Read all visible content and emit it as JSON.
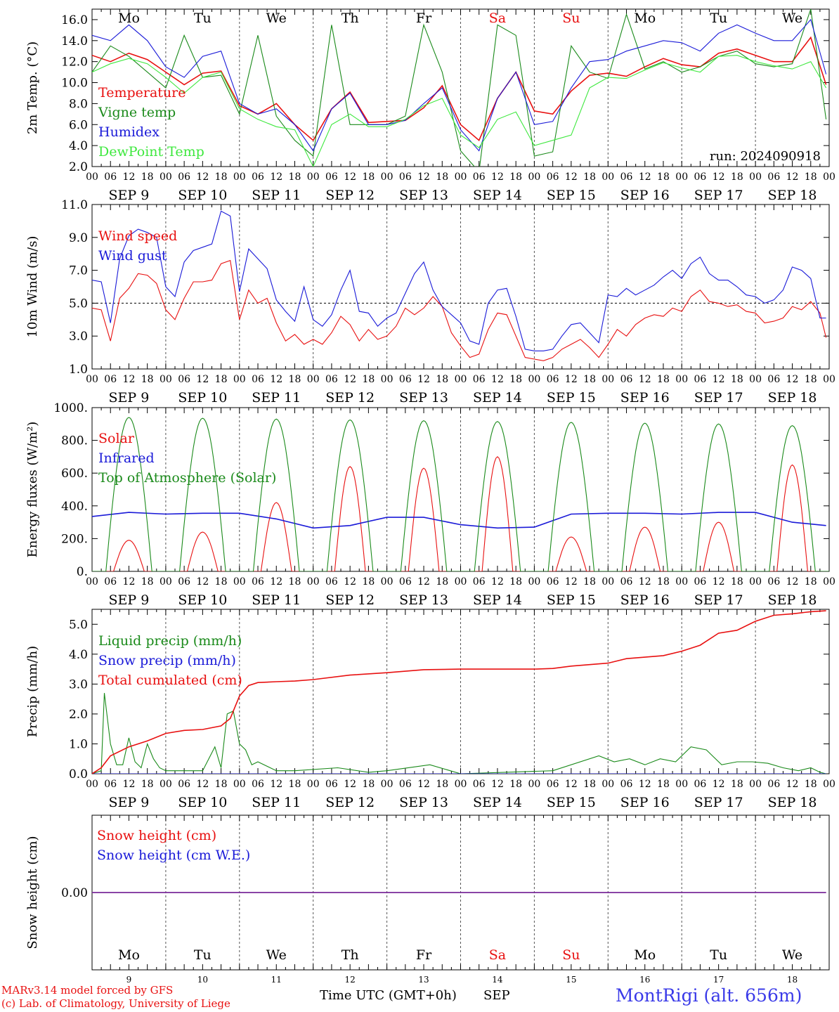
{
  "chart_data": [
    {
      "type": "line",
      "ylabel": "2m Temp. (°C)",
      "ylim": [
        2.0,
        17.0
      ],
      "yticks": [
        "2.0",
        "4.0",
        "6.0",
        "8.0",
        "10.0",
        "12.0",
        "14.0",
        "16.0"
      ],
      "annotation": "run: 2024090918",
      "days_top": [
        "Mo",
        "Tu",
        "We",
        "Th",
        "Fr",
        "Sa",
        "Su",
        "Mo",
        "Tu",
        "We"
      ],
      "series": [
        {
          "name": "Temperature",
          "color": "#e81010",
          "x": [
            0,
            6,
            12,
            18,
            24,
            30,
            36,
            42,
            48,
            54,
            60,
            66,
            72,
            78,
            84,
            90,
            96,
            102,
            108,
            114,
            120,
            126,
            132,
            138,
            144,
            150,
            156,
            162,
            168,
            174,
            180,
            186,
            192,
            198,
            204,
            210,
            216,
            222,
            228,
            234,
            239
          ],
          "values": [
            12.6,
            12.0,
            12.8,
            12.2,
            11.0,
            9.8,
            10.9,
            11.1,
            7.8,
            7.0,
            8.0,
            6.0,
            4.5,
            7.5,
            9.1,
            6.2,
            6.3,
            6.4,
            7.6,
            9.7,
            6.0,
            4.5,
            8.5,
            11.0,
            7.3,
            7.0,
            9.2,
            10.7,
            10.9,
            10.6,
            11.5,
            12.3,
            11.7,
            11.5,
            12.8,
            13.2,
            12.6,
            12.0,
            12.0,
            14.3,
            9.8
          ]
        },
        {
          "name": "Vigne temp",
          "color": "#1a8a1a",
          "x": [
            0,
            6,
            12,
            18,
            24,
            30,
            36,
            42,
            48,
            54,
            60,
            66,
            72,
            78,
            84,
            90,
            96,
            102,
            108,
            114,
            120,
            126,
            132,
            138,
            144,
            150,
            156,
            162,
            168,
            174,
            180,
            186,
            192,
            198,
            204,
            210,
            216,
            222,
            228,
            234,
            239
          ],
          "values": [
            11.0,
            13.5,
            12.5,
            11.0,
            9.5,
            14.5,
            10.5,
            10.7,
            7.0,
            14.5,
            6.8,
            4.5,
            3.0,
            15.5,
            6.0,
            6.0,
            6.0,
            6.8,
            15.5,
            11.0,
            3.5,
            1.5,
            15.5,
            14.5,
            3.0,
            3.4,
            13.5,
            11.0,
            10.4,
            16.5,
            11.3,
            12.0,
            11.0,
            11.5,
            12.5,
            13.0,
            11.8,
            11.5,
            11.8,
            17.0,
            6.5
          ]
        },
        {
          "name": "Humidex",
          "color": "#1a1ad8",
          "x": [
            0,
            6,
            12,
            18,
            24,
            30,
            36,
            42,
            48,
            54,
            60,
            66,
            72,
            78,
            84,
            90,
            96,
            102,
            108,
            114,
            120,
            126,
            132,
            138,
            144,
            150,
            156,
            162,
            168,
            174,
            180,
            186,
            192,
            198,
            204,
            210,
            216,
            222,
            228,
            234,
            239
          ],
          "values": [
            14.5,
            14.0,
            15.5,
            14.0,
            11.5,
            10.5,
            12.5,
            13.0,
            8.0,
            7.0,
            7.5,
            6.0,
            3.5,
            7.5,
            9.0,
            6.0,
            6.0,
            6.4,
            8.0,
            9.5,
            5.5,
            3.5,
            8.5,
            11.0,
            6.0,
            6.3,
            9.5,
            12.0,
            12.2,
            13.0,
            13.5,
            14.0,
            13.8,
            13.0,
            14.7,
            15.5,
            14.7,
            14.0,
            14.0,
            16.0,
            10.8
          ]
        },
        {
          "name": "DewPoint Temp",
          "color": "#3ee83e",
          "x": [
            0,
            6,
            12,
            18,
            24,
            30,
            36,
            42,
            48,
            54,
            60,
            66,
            72,
            78,
            84,
            90,
            96,
            102,
            108,
            114,
            120,
            126,
            132,
            138,
            144,
            150,
            156,
            162,
            168,
            174,
            180,
            186,
            192,
            198,
            204,
            210,
            216,
            222,
            228,
            234,
            239
          ],
          "values": [
            11.0,
            11.8,
            12.3,
            11.8,
            10.5,
            9.0,
            10.5,
            11.0,
            7.5,
            6.5,
            5.8,
            5.5,
            2.0,
            6.0,
            7.0,
            5.8,
            5.8,
            6.5,
            7.8,
            8.5,
            5.0,
            3.8,
            6.5,
            7.2,
            4.0,
            4.5,
            5.0,
            9.5,
            10.5,
            10.4,
            11.2,
            11.9,
            11.4,
            11.0,
            12.5,
            12.6,
            12.0,
            11.6,
            11.3,
            12.0,
            9.5
          ]
        }
      ]
    },
    {
      "type": "line",
      "ylabel": "10m Wind (m/s)",
      "ylim": [
        1.0,
        11.0
      ],
      "yticks": [
        "1.0",
        "3.0",
        "5.0",
        "7.0",
        "9.0",
        "11.0"
      ],
      "ref_line": 5.0,
      "series": [
        {
          "name": "Wind speed",
          "color": "#e81010",
          "x": [
            0,
            3,
            6,
            9,
            12,
            15,
            18,
            21,
            24,
            27,
            30,
            33,
            36,
            39,
            42,
            45,
            48,
            51,
            54,
            57,
            60,
            63,
            66,
            69,
            72,
            75,
            78,
            81,
            84,
            87,
            90,
            93,
            96,
            99,
            102,
            105,
            108,
            111,
            114,
            117,
            120,
            123,
            126,
            129,
            132,
            135,
            138,
            141,
            144,
            147,
            150,
            153,
            156,
            159,
            162,
            165,
            168,
            171,
            174,
            177,
            180,
            183,
            186,
            189,
            192,
            195,
            198,
            201,
            204,
            207,
            210,
            213,
            216,
            219,
            222,
            225,
            228,
            231,
            234,
            237,
            239
          ],
          "values": [
            4.7,
            4.6,
            2.7,
            5.3,
            5.9,
            6.8,
            6.7,
            6.2,
            4.6,
            4.0,
            5.3,
            6.3,
            6.3,
            6.4,
            7.4,
            7.6,
            4.0,
            5.8,
            5.0,
            5.3,
            3.8,
            2.7,
            3.1,
            2.5,
            2.8,
            2.5,
            3.2,
            4.2,
            3.7,
            2.7,
            3.4,
            2.8,
            3.0,
            3.6,
            4.7,
            4.3,
            4.7,
            5.4,
            4.8,
            3.2,
            2.4,
            1.7,
            1.9,
            3.4,
            4.4,
            4.3,
            3.0,
            1.7,
            1.6,
            1.5,
            1.7,
            2.2,
            2.5,
            2.8,
            2.3,
            1.7,
            2.5,
            3.4,
            3.0,
            3.7,
            4.1,
            4.3,
            4.2,
            4.7,
            4.5,
            5.4,
            5.8,
            5.1,
            5.0,
            4.8,
            4.9,
            4.5,
            4.4,
            3.8,
            3.9,
            4.1,
            4.8,
            4.6,
            5.1,
            4.4,
            2.9
          ]
        },
        {
          "name": "Wind gust",
          "color": "#1a1ad8",
          "x": [
            0,
            3,
            6,
            9,
            12,
            15,
            18,
            21,
            24,
            27,
            30,
            33,
            36,
            39,
            42,
            45,
            48,
            51,
            54,
            57,
            60,
            63,
            66,
            69,
            72,
            75,
            78,
            81,
            84,
            87,
            90,
            93,
            96,
            99,
            102,
            105,
            108,
            111,
            114,
            117,
            120,
            123,
            126,
            129,
            132,
            135,
            138,
            141,
            144,
            147,
            150,
            153,
            156,
            159,
            162,
            165,
            168,
            171,
            174,
            177,
            180,
            183,
            186,
            189,
            192,
            195,
            198,
            201,
            204,
            207,
            210,
            213,
            216,
            219,
            222,
            225,
            228,
            231,
            234,
            237,
            239
          ],
          "values": [
            6.4,
            6.3,
            3.8,
            7.7,
            9.1,
            9.5,
            9.3,
            9.0,
            6.0,
            5.4,
            7.5,
            8.2,
            8.4,
            8.6,
            10.6,
            10.3,
            5.7,
            8.3,
            7.7,
            7.1,
            5.2,
            4.5,
            3.9,
            6.0,
            4.0,
            3.6,
            4.3,
            5.8,
            7.0,
            4.5,
            4.4,
            3.6,
            4.1,
            4.4,
            5.6,
            6.8,
            7.5,
            5.8,
            4.8,
            4.3,
            3.8,
            2.7,
            2.5,
            5.0,
            5.8,
            5.9,
            4.2,
            2.2,
            2.1,
            2.1,
            2.2,
            3.0,
            3.7,
            3.8,
            3.2,
            2.6,
            5.5,
            5.4,
            5.9,
            5.5,
            5.8,
            6.1,
            6.6,
            7.0,
            6.5,
            7.4,
            7.8,
            6.8,
            6.4,
            6.4,
            6.0,
            5.5,
            5.4,
            5.0,
            5.2,
            5.8,
            7.2,
            7.0,
            6.5,
            4.1,
            4.1
          ]
        }
      ]
    },
    {
      "type": "line",
      "ylabel": "Energy fluxes (W/m²)",
      "ylim": [
        0,
        1000
      ],
      "yticks": [
        "0.",
        "200.",
        "400.",
        "600.",
        "800.",
        "1000."
      ],
      "series": [
        {
          "name": "Solar",
          "color": "#e81010",
          "peaks": [
            190,
            240,
            420,
            640,
            630,
            700,
            210,
            270,
            300,
            650
          ]
        },
        {
          "name": "Infrared",
          "color": "#1a1ad8",
          "x": [
            0,
            12,
            24,
            36,
            48,
            60,
            72,
            84,
            96,
            108,
            120,
            132,
            144,
            156,
            168,
            180,
            192,
            204,
            216,
            228,
            239
          ],
          "values": [
            335,
            360,
            350,
            355,
            355,
            320,
            265,
            280,
            330,
            330,
            285,
            265,
            270,
            350,
            355,
            355,
            350,
            360,
            360,
            300,
            280
          ]
        },
        {
          "name": "Top of Atmosphere (Solar)",
          "color": "#1a8a1a",
          "peaks": [
            940,
            935,
            930,
            925,
            920,
            915,
            910,
            905,
            900,
            890
          ]
        }
      ]
    },
    {
      "type": "line",
      "ylabel": "Precip (mm/h)",
      "ylim": [
        0,
        5.5
      ],
      "yticks": [
        "0.0",
        "1.0",
        "2.0",
        "3.0",
        "4.0",
        "5.0"
      ],
      "series": [
        {
          "name": "Liquid precip (mm/h)",
          "color": "#1a8a1a",
          "x": [
            0,
            3,
            4,
            6,
            8,
            10,
            12,
            14,
            16,
            18,
            20,
            22,
            24,
            30,
            36,
            40,
            42,
            44,
            46,
            48,
            50,
            52,
            54,
            60,
            66,
            80,
            90,
            96,
            110,
            120,
            150,
            165,
            170,
            175,
            180,
            185,
            190,
            195,
            200,
            205,
            210,
            215,
            220,
            225,
            230,
            234,
            237,
            239
          ],
          "values": [
            0,
            0.1,
            2.7,
            1.0,
            0.3,
            0.3,
            1.2,
            0.4,
            0.2,
            1.0,
            0.5,
            0.2,
            0.1,
            0.1,
            0.1,
            0.9,
            0.2,
            2.0,
            2.1,
            1.0,
            0.8,
            0.3,
            0.4,
            0.1,
            0.1,
            0.2,
            0.05,
            0.1,
            0.3,
            0,
            0.1,
            0.6,
            0.4,
            0.5,
            0.3,
            0.5,
            0.4,
            0.9,
            0.8,
            0.3,
            0.4,
            0.4,
            0.35,
            0.2,
            0.1,
            0.2,
            0.05,
            0
          ]
        },
        {
          "name": "Snow precip (mm/h)",
          "color": "#1a1ad8",
          "x": [
            0,
            239
          ],
          "values": [
            0,
            0
          ]
        },
        {
          "name": "Total cumulated (cm)",
          "color": "#e81010",
          "x": [
            0,
            3,
            6,
            12,
            18,
            24,
            30,
            36,
            42,
            45,
            48,
            51,
            54,
            60,
            66,
            72,
            84,
            96,
            108,
            120,
            132,
            144,
            150,
            156,
            168,
            174,
            180,
            186,
            192,
            198,
            204,
            210,
            216,
            222,
            228,
            234,
            239
          ],
          "values": [
            0.0,
            0.2,
            0.6,
            0.9,
            1.1,
            1.35,
            1.45,
            1.48,
            1.6,
            1.85,
            2.6,
            2.95,
            3.05,
            3.08,
            3.1,
            3.15,
            3.3,
            3.38,
            3.48,
            3.5,
            3.5,
            3.5,
            3.52,
            3.6,
            3.7,
            3.85,
            3.9,
            3.95,
            4.1,
            4.3,
            4.7,
            4.8,
            5.1,
            5.3,
            5.35,
            5.42,
            5.45
          ]
        }
      ]
    },
    {
      "type": "line",
      "ylabel": "Snow height (cm)",
      "yticks": [
        "0.00"
      ],
      "series": [
        {
          "name": "Snow height (cm)",
          "color": "#e81010",
          "x": [
            0,
            239
          ],
          "values": [
            0,
            0
          ]
        },
        {
          "name": "Snow height (cm W.E.)",
          "color": "#1a1ad8",
          "x": [
            0,
            239
          ],
          "values": [
            0,
            0
          ]
        }
      ],
      "days_bottom": [
        "Mo",
        "Tu",
        "We",
        "Th",
        "Fr",
        "Sa",
        "Su",
        "Mo",
        "Tu",
        "We"
      ],
      "day_numbers": [
        "9",
        "10",
        "11",
        "12",
        "13",
        "14",
        "15",
        "16",
        "17",
        "18"
      ]
    }
  ],
  "hour_ticks": [
    "00",
    "06",
    "12",
    "18"
  ],
  "date_labels": [
    "SEP  9",
    "SEP 10",
    "SEP 11",
    "SEP 12",
    "SEP 13",
    "SEP 14",
    "SEP 15",
    "SEP 16",
    "SEP 17",
    "SEP 18"
  ],
  "weekend_indices": [
    5,
    6
  ],
  "footer": {
    "credit_line1": "MARv3.14 model forced by GFS",
    "credit_line2": "(c) Lab. of Climatology, University of Liege",
    "xlabel": "Time UTC (GMT+0h)",
    "month": "SEP",
    "station": "MontRigi (alt. 656m)"
  },
  "colors": {
    "red": "#e81010",
    "green": "#1a8a1a",
    "blue": "#1a1ad8",
    "lightgreen": "#3ee83e",
    "purple": "#7a2a9a",
    "station": "#3a3ae8"
  }
}
